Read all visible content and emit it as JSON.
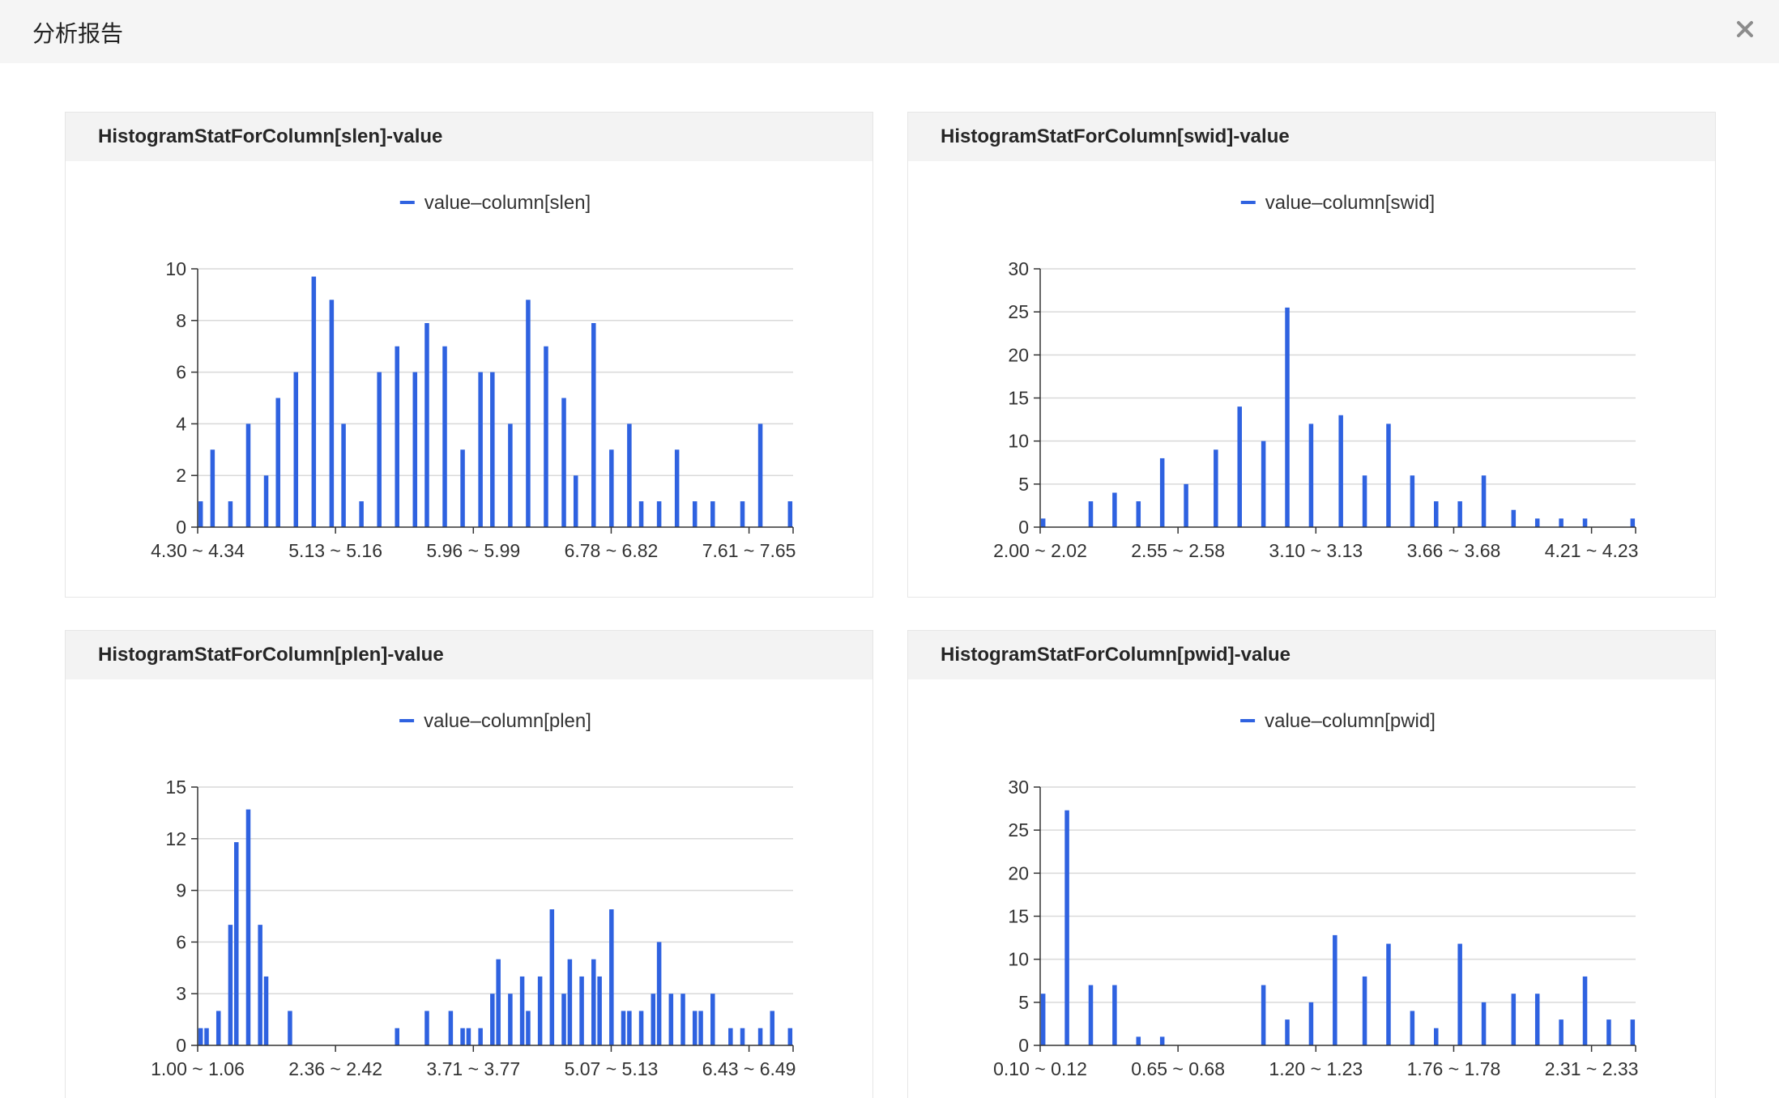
{
  "window": {
    "title": "分析报告",
    "close_icon": "close-icon"
  },
  "colors": {
    "bar": "#2f62e0",
    "grid": "#d9d9d9",
    "axis": "#333333",
    "header_bg": "#f5f5f5",
    "card_head_bg": "#f3f3f3"
  },
  "cards": [
    {
      "title": "HistogramStatForColumn[slen]-value"
    },
    {
      "title": "HistogramStatForColumn[swid]-value"
    },
    {
      "title": "HistogramStatForColumn[plen]-value"
    },
    {
      "title": "HistogramStatForColumn[pwid]-value"
    }
  ],
  "chart_data": [
    {
      "type": "bar",
      "title": "HistogramStatForColumn[slen]-value",
      "legend": "value–column[slen]",
      "legend_position": "top-center",
      "grid": true,
      "ylim": [
        0,
        10
      ],
      "yticks": [
        "0",
        "2",
        "4",
        "6",
        "8",
        "10"
      ],
      "bin_count": 100,
      "x_tick_labels": [
        "4.30 ~ 4.34",
        "5.13 ~ 5.16",
        "5.96 ~ 5.99",
        "6.78 ~ 6.82",
        "7.61 ~ 7.65"
      ],
      "bars": [
        {
          "bin": 0,
          "value": 1
        },
        {
          "bin": 2,
          "value": 3
        },
        {
          "bin": 5,
          "value": 1
        },
        {
          "bin": 8,
          "value": 4
        },
        {
          "bin": 11,
          "value": 2
        },
        {
          "bin": 13,
          "value": 5
        },
        {
          "bin": 16,
          "value": 6
        },
        {
          "bin": 19,
          "value": 9.7
        },
        {
          "bin": 22,
          "value": 8.8
        },
        {
          "bin": 24,
          "value": 4
        },
        {
          "bin": 27,
          "value": 1
        },
        {
          "bin": 30,
          "value": 6
        },
        {
          "bin": 33,
          "value": 7
        },
        {
          "bin": 36,
          "value": 6
        },
        {
          "bin": 38,
          "value": 7.9
        },
        {
          "bin": 41,
          "value": 7
        },
        {
          "bin": 44,
          "value": 3
        },
        {
          "bin": 47,
          "value": 6
        },
        {
          "bin": 49,
          "value": 6
        },
        {
          "bin": 52,
          "value": 4
        },
        {
          "bin": 55,
          "value": 8.8
        },
        {
          "bin": 58,
          "value": 7
        },
        {
          "bin": 61,
          "value": 5
        },
        {
          "bin": 63,
          "value": 2
        },
        {
          "bin": 66,
          "value": 7.9
        },
        {
          "bin": 69,
          "value": 3
        },
        {
          "bin": 72,
          "value": 4
        },
        {
          "bin": 74,
          "value": 1
        },
        {
          "bin": 77,
          "value": 1
        },
        {
          "bin": 80,
          "value": 3
        },
        {
          "bin": 83,
          "value": 1
        },
        {
          "bin": 86,
          "value": 1
        },
        {
          "bin": 91,
          "value": 1
        },
        {
          "bin": 94,
          "value": 4
        },
        {
          "bin": 99,
          "value": 1
        }
      ]
    },
    {
      "type": "bar",
      "title": "HistogramStatForColumn[swid]-value",
      "legend": "value–column[swid]",
      "legend_position": "top-center",
      "grid": true,
      "ylim": [
        0,
        30
      ],
      "yticks": [
        "0",
        "5",
        "10",
        "15",
        "20",
        "25",
        "30"
      ],
      "bin_count": 100,
      "x_tick_labels": [
        "2.00 ~ 2.02",
        "2.55 ~ 2.58",
        "3.10 ~ 3.13",
        "3.66 ~ 3.68",
        "4.21 ~ 4.23"
      ],
      "bars": [
        {
          "bin": 0,
          "value": 1
        },
        {
          "bin": 8,
          "value": 3
        },
        {
          "bin": 12,
          "value": 4
        },
        {
          "bin": 16,
          "value": 3
        },
        {
          "bin": 20,
          "value": 8
        },
        {
          "bin": 24,
          "value": 5
        },
        {
          "bin": 29,
          "value": 9
        },
        {
          "bin": 33,
          "value": 14
        },
        {
          "bin": 37,
          "value": 10
        },
        {
          "bin": 41,
          "value": 25.5
        },
        {
          "bin": 45,
          "value": 12
        },
        {
          "bin": 50,
          "value": 13
        },
        {
          "bin": 54,
          "value": 6
        },
        {
          "bin": 58,
          "value": 12
        },
        {
          "bin": 62,
          "value": 6
        },
        {
          "bin": 66,
          "value": 3
        },
        {
          "bin": 70,
          "value": 3
        },
        {
          "bin": 74,
          "value": 6
        },
        {
          "bin": 79,
          "value": 2
        },
        {
          "bin": 83,
          "value": 1
        },
        {
          "bin": 87,
          "value": 1
        },
        {
          "bin": 91,
          "value": 1
        },
        {
          "bin": 99,
          "value": 1
        }
      ]
    },
    {
      "type": "bar",
      "title": "HistogramStatForColumn[plen]-value",
      "legend": "value–column[plen]",
      "legend_position": "top-center",
      "grid": true,
      "ylim": [
        0,
        15
      ],
      "yticks": [
        "0",
        "3",
        "6",
        "9",
        "12",
        "15"
      ],
      "bin_count": 100,
      "x_tick_labels": [
        "1.00 ~ 1.06",
        "2.36 ~ 2.42",
        "3.71 ~ 3.77",
        "5.07 ~ 5.13",
        "6.43 ~ 6.49"
      ],
      "bars": [
        {
          "bin": 0,
          "value": 1
        },
        {
          "bin": 1,
          "value": 1
        },
        {
          "bin": 3,
          "value": 2
        },
        {
          "bin": 5,
          "value": 7
        },
        {
          "bin": 6,
          "value": 11.8
        },
        {
          "bin": 8,
          "value": 13.7
        },
        {
          "bin": 10,
          "value": 7
        },
        {
          "bin": 11,
          "value": 4
        },
        {
          "bin": 15,
          "value": 2
        },
        {
          "bin": 33,
          "value": 1
        },
        {
          "bin": 38,
          "value": 2
        },
        {
          "bin": 42,
          "value": 2
        },
        {
          "bin": 44,
          "value": 1
        },
        {
          "bin": 45,
          "value": 1
        },
        {
          "bin": 47,
          "value": 1
        },
        {
          "bin": 49,
          "value": 3
        },
        {
          "bin": 50,
          "value": 5
        },
        {
          "bin": 52,
          "value": 3
        },
        {
          "bin": 54,
          "value": 4
        },
        {
          "bin": 55,
          "value": 2
        },
        {
          "bin": 57,
          "value": 4
        },
        {
          "bin": 59,
          "value": 7.9
        },
        {
          "bin": 61,
          "value": 3
        },
        {
          "bin": 62,
          "value": 5
        },
        {
          "bin": 64,
          "value": 4
        },
        {
          "bin": 66,
          "value": 5
        },
        {
          "bin": 67,
          "value": 4
        },
        {
          "bin": 69,
          "value": 7.9
        },
        {
          "bin": 71,
          "value": 2
        },
        {
          "bin": 72,
          "value": 2
        },
        {
          "bin": 74,
          "value": 2
        },
        {
          "bin": 76,
          "value": 3
        },
        {
          "bin": 77,
          "value": 6
        },
        {
          "bin": 79,
          "value": 3
        },
        {
          "bin": 81,
          "value": 3
        },
        {
          "bin": 83,
          "value": 2
        },
        {
          "bin": 84,
          "value": 2
        },
        {
          "bin": 86,
          "value": 3
        },
        {
          "bin": 89,
          "value": 1
        },
        {
          "bin": 91,
          "value": 1
        },
        {
          "bin": 94,
          "value": 1
        },
        {
          "bin": 96,
          "value": 2
        },
        {
          "bin": 99,
          "value": 1
        }
      ]
    },
    {
      "type": "bar",
      "title": "HistogramStatForColumn[pwid]-value",
      "legend": "value–column[pwid]",
      "legend_position": "top-center",
      "grid": true,
      "ylim": [
        0,
        30
      ],
      "yticks": [
        "0",
        "5",
        "10",
        "15",
        "20",
        "25",
        "30"
      ],
      "bin_count": 100,
      "x_tick_labels": [
        "0.10 ~ 0.12",
        "0.65 ~ 0.68",
        "1.20 ~ 1.23",
        "1.76 ~ 1.78",
        "2.31 ~ 2.33"
      ],
      "bars": [
        {
          "bin": 0,
          "value": 6
        },
        {
          "bin": 4,
          "value": 27.3
        },
        {
          "bin": 8,
          "value": 7
        },
        {
          "bin": 12,
          "value": 7
        },
        {
          "bin": 16,
          "value": 1
        },
        {
          "bin": 20,
          "value": 1
        },
        {
          "bin": 37,
          "value": 7
        },
        {
          "bin": 41,
          "value": 3
        },
        {
          "bin": 45,
          "value": 5
        },
        {
          "bin": 49,
          "value": 12.8
        },
        {
          "bin": 54,
          "value": 8
        },
        {
          "bin": 58,
          "value": 11.8
        },
        {
          "bin": 62,
          "value": 4
        },
        {
          "bin": 66,
          "value": 2
        },
        {
          "bin": 70,
          "value": 11.8
        },
        {
          "bin": 74,
          "value": 5
        },
        {
          "bin": 79,
          "value": 6
        },
        {
          "bin": 83,
          "value": 6
        },
        {
          "bin": 87,
          "value": 3
        },
        {
          "bin": 91,
          "value": 8
        },
        {
          "bin": 95,
          "value": 3
        },
        {
          "bin": 99,
          "value": 3
        }
      ]
    }
  ]
}
